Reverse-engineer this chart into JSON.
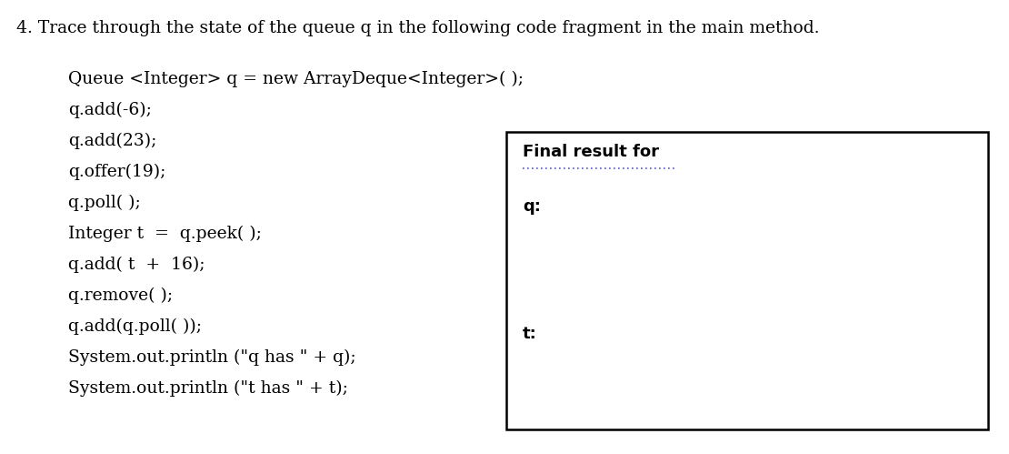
{
  "title": "4. Trace through the state of the queue q in the following code fragment in the main method.",
  "title_fontsize": 13.5,
  "code_lines": [
    "Queue <Integer> q = new ArrayDeque<Integer>( );",
    "q.add(-6);",
    "q.add(23);",
    "q.offer(19);",
    "q.poll( );",
    "Integer t  =  q.peek( );",
    "q.add( t  +  16);",
    "q.remove( );",
    "q.add(q.poll( ));",
    "System.out.println (\"q has \" + q);",
    "System.out.println (\"t has \" + t);"
  ],
  "code_fontsize": 13.5,
  "final_result_label": "Final result for",
  "final_result_fontsize": 13.0,
  "q_label": "q:",
  "q_label_fontsize": 13.0,
  "t_label": "t:",
  "t_label_fontsize": 13.0,
  "bg_color": "#ffffff",
  "text_color": "#000000",
  "dotted_color": "#5555cc"
}
